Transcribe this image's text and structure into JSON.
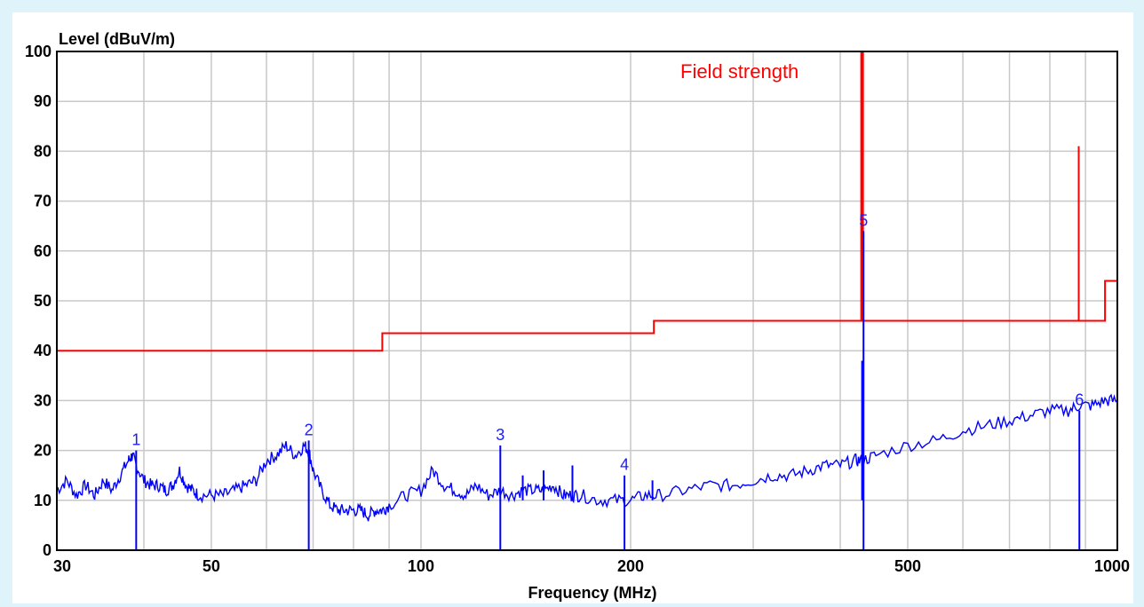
{
  "chart_data": {
    "type": "line",
    "title": "",
    "xlabel": "Frequency (MHz)",
    "ylabel": "Level (dBuV/m)",
    "x_scale": "log",
    "xlim": [
      30,
      1000
    ],
    "ylim": [
      0,
      100
    ],
    "grid": true,
    "x_tick_labels": [
      {
        "value": 30,
        "label": "30"
      },
      {
        "value": 50,
        "label": "50"
      },
      {
        "value": 100,
        "label": "100"
      },
      {
        "value": 200,
        "label": "200"
      },
      {
        "value": 500,
        "label": "500"
      },
      {
        "value": 1000,
        "label": "1000"
      }
    ],
    "x_minor_grid": [
      40,
      60,
      70,
      80,
      90,
      300,
      400,
      600,
      700,
      800,
      900
    ],
    "y_ticks": [
      0,
      10,
      20,
      30,
      40,
      50,
      60,
      70,
      80,
      90,
      100
    ],
    "annotation": "Field strength",
    "colors": {
      "limit": "#ff0000",
      "measurement": "#0000ff",
      "marker_label": "#1c1cff",
      "grid": "#c8c8c8"
    },
    "series": [
      {
        "kind": "limit",
        "x": [
          30,
          88,
          88,
          216,
          216,
          430,
          430,
          430,
          880,
          880,
          880,
          960,
          960,
          1000
        ],
        "y": [
          40,
          40,
          43.5,
          43.5,
          46,
          46,
          100,
          46,
          46,
          81,
          46,
          46,
          54,
          54
        ]
      },
      {
        "kind": "measurement",
        "x": [
          30,
          31,
          32,
          33,
          34,
          35,
          36,
          37,
          38,
          38.5,
          39,
          40,
          41,
          42,
          43,
          44,
          45,
          46,
          47,
          48,
          50,
          52,
          54,
          56,
          58,
          60,
          62,
          64,
          66,
          68,
          69,
          70,
          72,
          74,
          76,
          78,
          80,
          82,
          84,
          86,
          88,
          90,
          95,
          100,
          104,
          108,
          112,
          116,
          120,
          125,
          130,
          135,
          140,
          145,
          150,
          155,
          160,
          165,
          170,
          180,
          190,
          200,
          210,
          220,
          240,
          260,
          280,
          300,
          320,
          340,
          360,
          380,
          400,
          420,
          430,
          450,
          500,
          550,
          600,
          650,
          700,
          750,
          800,
          850,
          880,
          920,
          960,
          1000
        ],
        "y": [
          12,
          14,
          11,
          13,
          11,
          14,
          12,
          15,
          18,
          19,
          17,
          14,
          13,
          13,
          12,
          13,
          16,
          13,
          12,
          11,
          11,
          11,
          12,
          13,
          14,
          18,
          19,
          21,
          19,
          21,
          20,
          16,
          12,
          9,
          8,
          8,
          8,
          8,
          7,
          8,
          8,
          9,
          11,
          12,
          16,
          13,
          12,
          11,
          13,
          11,
          12,
          11,
          12,
          12,
          12,
          13,
          11,
          11,
          11,
          10,
          10,
          10,
          11,
          11,
          12,
          13,
          13,
          14,
          15,
          15,
          16,
          17,
          17,
          18,
          18,
          19,
          21,
          22,
          24,
          25,
          26,
          27,
          28,
          28,
          29,
          29,
          30,
          30
        ]
      }
    ],
    "spikes": [
      {
        "x": 430,
        "y": 38
      },
      {
        "x": 215,
        "y": 14
      },
      {
        "x": 165,
        "y": 17
      },
      {
        "x": 150,
        "y": 16
      },
      {
        "x": 140,
        "y": 15
      }
    ],
    "markers": [
      {
        "label": "1",
        "x": 39,
        "y": 20
      },
      {
        "label": "2",
        "x": 69,
        "y": 22
      },
      {
        "label": "3",
        "x": 130,
        "y": 21
      },
      {
        "label": "4",
        "x": 196,
        "y": 15
      },
      {
        "label": "5",
        "x": 432,
        "y": 64
      },
      {
        "label": "6",
        "x": 882,
        "y": 28
      }
    ]
  }
}
